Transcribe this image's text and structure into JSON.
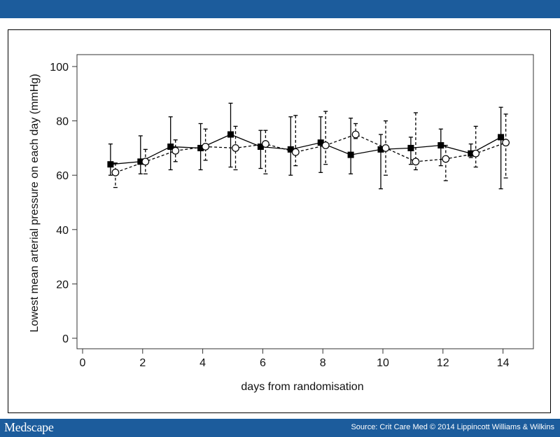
{
  "footer": {
    "logo_text": "Medscape",
    "source": "Source: Crit Care Med © 2014 Lippincott Williams & Wilkins"
  },
  "colors": {
    "brand": "#1c5c9c",
    "axis": "#333333",
    "series": "#000000"
  },
  "chart_data": {
    "type": "line",
    "title": "",
    "xlabel": "days from randomisation",
    "ylabel": "Lowest mean arterial pressure on each day (mmHg)",
    "xlim": [
      0,
      15
    ],
    "ylim": [
      0,
      100
    ],
    "xticks": [
      0,
      2,
      4,
      6,
      8,
      10,
      12,
      14
    ],
    "yticks": [
      0,
      20,
      40,
      60,
      80,
      100
    ],
    "grid": false,
    "legend": "none",
    "series": [
      {
        "marker": "filled-square",
        "line_style": "solid",
        "error_style": "solid",
        "x": [
          1,
          2,
          3,
          4,
          5,
          6,
          7,
          8,
          9,
          10,
          11,
          12,
          13,
          14
        ],
        "y": [
          64,
          65,
          70.5,
          70,
          75,
          70.5,
          69.5,
          72,
          67.5,
          69.5,
          70,
          71,
          68,
          74
        ],
        "lower": [
          60,
          60.5,
          62,
          62,
          63,
          62.5,
          60,
          61,
          60.5,
          55,
          64,
          63.5,
          66.5,
          55
        ],
        "upper": [
          71.5,
          74.5,
          81.5,
          79,
          86.5,
          76.5,
          81.5,
          81.5,
          81,
          75,
          74,
          77,
          71.5,
          85
        ]
      },
      {
        "marker": "open-circle",
        "line_style": "dashed",
        "error_style": "dashed",
        "x": [
          1,
          2,
          3,
          4,
          5,
          6,
          7,
          8,
          9,
          10,
          11,
          12,
          13,
          14
        ],
        "y": [
          61,
          65,
          69,
          70.5,
          70,
          71.5,
          68.5,
          71,
          75,
          70,
          65,
          66,
          68,
          72
        ],
        "lower": [
          55.5,
          60.5,
          65,
          65.5,
          62,
          60.5,
          63.5,
          64,
          73.5,
          60,
          62,
          58,
          63,
          59
        ],
        "upper": [
          64.5,
          69.5,
          73,
          77,
          78,
          76.5,
          82,
          83.5,
          79,
          80,
          83,
          71,
          78,
          82.5
        ]
      }
    ]
  }
}
